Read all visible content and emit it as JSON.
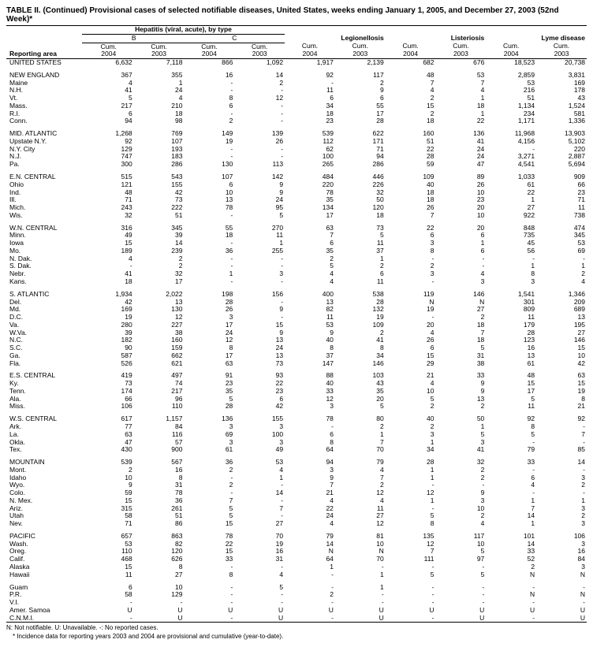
{
  "title": "TABLE II. (Continued) Provisional cases of selected notifiable diseases, United States, weeks ending January 1, 2005, and December 27, 2003 (52nd Week)*",
  "header": {
    "super": "Hepatitis (viral, acute), by type",
    "diseases": [
      "B",
      "C",
      "Legionellosis",
      "Listeriosis",
      "Lyme disease"
    ],
    "sub": [
      "Cum. 2004",
      "Cum. 2003"
    ],
    "area": "Reporting area"
  },
  "footnotes": [
    "N: Not notifiable.        U: Unavailable.        -: No reported cases.",
    "* Incidence data for reporting years 2003 and 2004 are provisional and cumulative (year-to-date)."
  ],
  "groups": [
    {
      "rows": [
        [
          "UNITED STATES",
          "6,632",
          "7,118",
          "866",
          "1,092",
          "1,917",
          "2,139",
          "682",
          "676",
          "18,523",
          "20,738"
        ]
      ]
    },
    {
      "rows": [
        [
          "NEW ENGLAND",
          "367",
          "355",
          "16",
          "14",
          "92",
          "117",
          "48",
          "53",
          "2,859",
          "3,831"
        ],
        [
          "Maine",
          "4",
          "1",
          "-",
          "2",
          "-",
          "2",
          "7",
          "7",
          "53",
          "169"
        ],
        [
          "N.H.",
          "41",
          "24",
          "-",
          "-",
          "11",
          "9",
          "4",
          "4",
          "216",
          "178"
        ],
        [
          "Vt.",
          "5",
          "4",
          "8",
          "12",
          "6",
          "6",
          "2",
          "1",
          "51",
          "43"
        ],
        [
          "Mass.",
          "217",
          "210",
          "6",
          "-",
          "34",
          "55",
          "15",
          "18",
          "1,134",
          "1,524"
        ],
        [
          "R.I.",
          "6",
          "18",
          "-",
          "-",
          "18",
          "17",
          "2",
          "1",
          "234",
          "581"
        ],
        [
          "Conn.",
          "94",
          "98",
          "2",
          "-",
          "23",
          "28",
          "18",
          "22",
          "1,171",
          "1,336"
        ]
      ]
    },
    {
      "rows": [
        [
          "MID. ATLANTIC",
          "1,268",
          "769",
          "149",
          "139",
          "539",
          "622",
          "160",
          "136",
          "11,968",
          "13,903"
        ],
        [
          "Upstate N.Y.",
          "92",
          "107",
          "19",
          "26",
          "112",
          "171",
          "51",
          "41",
          "4,156",
          "5,102"
        ],
        [
          "N.Y. City",
          "129",
          "193",
          "-",
          "-",
          "62",
          "71",
          "22",
          "24",
          "-",
          "220"
        ],
        [
          "N.J.",
          "747",
          "183",
          "-",
          "-",
          "100",
          "94",
          "28",
          "24",
          "3,271",
          "2,887"
        ],
        [
          "Pa.",
          "300",
          "286",
          "130",
          "113",
          "265",
          "286",
          "59",
          "47",
          "4,541",
          "5,694"
        ]
      ]
    },
    {
      "rows": [
        [
          "E.N. CENTRAL",
          "515",
          "543",
          "107",
          "142",
          "484",
          "446",
          "109",
          "89",
          "1,033",
          "909"
        ],
        [
          "Ohio",
          "121",
          "155",
          "6",
          "9",
          "220",
          "226",
          "40",
          "26",
          "61",
          "66"
        ],
        [
          "Ind.",
          "48",
          "42",
          "10",
          "9",
          "78",
          "32",
          "18",
          "10",
          "22",
          "23"
        ],
        [
          "Ill.",
          "71",
          "73",
          "13",
          "24",
          "35",
          "50",
          "18",
          "23",
          "1",
          "71"
        ],
        [
          "Mich.",
          "243",
          "222",
          "78",
          "95",
          "134",
          "120",
          "26",
          "20",
          "27",
          "11"
        ],
        [
          "Wis.",
          "32",
          "51",
          "-",
          "5",
          "17",
          "18",
          "7",
          "10",
          "922",
          "738"
        ]
      ]
    },
    {
      "rows": [
        [
          "W.N. CENTRAL",
          "316",
          "345",
          "55",
          "270",
          "63",
          "73",
          "22",
          "20",
          "848",
          "474"
        ],
        [
          "Minn.",
          "49",
          "39",
          "18",
          "11",
          "7",
          "5",
          "6",
          "6",
          "735",
          "345"
        ],
        [
          "Iowa",
          "15",
          "14",
          "-",
          "1",
          "6",
          "11",
          "3",
          "1",
          "45",
          "53"
        ],
        [
          "Mo.",
          "189",
          "239",
          "36",
          "255",
          "35",
          "37",
          "8",
          "6",
          "56",
          "69"
        ],
        [
          "N. Dak.",
          "4",
          "2",
          "-",
          "-",
          "2",
          "1",
          "-",
          "-",
          "-",
          "-"
        ],
        [
          "S. Dak.",
          "-",
          "2",
          "-",
          "-",
          "5",
          "2",
          "2",
          "-",
          "1",
          "1"
        ],
        [
          "Nebr.",
          "41",
          "32",
          "1",
          "3",
          "4",
          "6",
          "3",
          "4",
          "8",
          "2"
        ],
        [
          "Kans.",
          "18",
          "17",
          "-",
          "-",
          "4",
          "11",
          "-",
          "3",
          "3",
          "4"
        ]
      ]
    },
    {
      "rows": [
        [
          "S. ATLANTIC",
          "1,934",
          "2,022",
          "198",
          "156",
          "400",
          "538",
          "119",
          "146",
          "1,541",
          "1,346"
        ],
        [
          "Del.",
          "42",
          "13",
          "28",
          "-",
          "13",
          "28",
          "N",
          "N",
          "301",
          "209"
        ],
        [
          "Md.",
          "169",
          "130",
          "26",
          "9",
          "82",
          "132",
          "19",
          "27",
          "809",
          "689"
        ],
        [
          "D.C.",
          "19",
          "12",
          "3",
          "-",
          "11",
          "19",
          "-",
          "2",
          "11",
          "13"
        ],
        [
          "Va.",
          "280",
          "227",
          "17",
          "15",
          "53",
          "109",
          "20",
          "18",
          "179",
          "195"
        ],
        [
          "W.Va.",
          "39",
          "38",
          "24",
          "9",
          "9",
          "2",
          "4",
          "7",
          "28",
          "27"
        ],
        [
          "N.C.",
          "182",
          "160",
          "12",
          "13",
          "40",
          "41",
          "26",
          "18",
          "123",
          "146"
        ],
        [
          "S.C.",
          "90",
          "159",
          "8",
          "24",
          "8",
          "8",
          "6",
          "5",
          "16",
          "15"
        ],
        [
          "Ga.",
          "587",
          "662",
          "17",
          "13",
          "37",
          "34",
          "15",
          "31",
          "13",
          "10"
        ],
        [
          "Fla.",
          "526",
          "621",
          "63",
          "73",
          "147",
          "146",
          "29",
          "38",
          "61",
          "42"
        ]
      ]
    },
    {
      "rows": [
        [
          "E.S. CENTRAL",
          "419",
          "497",
          "91",
          "93",
          "88",
          "103",
          "21",
          "33",
          "48",
          "63"
        ],
        [
          "Ky.",
          "73",
          "74",
          "23",
          "22",
          "40",
          "43",
          "4",
          "9",
          "15",
          "15"
        ],
        [
          "Tenn.",
          "174",
          "217",
          "35",
          "23",
          "33",
          "35",
          "10",
          "9",
          "17",
          "19"
        ],
        [
          "Ala.",
          "66",
          "96",
          "5",
          "6",
          "12",
          "20",
          "5",
          "13",
          "5",
          "8"
        ],
        [
          "Miss.",
          "106",
          "110",
          "28",
          "42",
          "3",
          "5",
          "2",
          "2",
          "11",
          "21"
        ]
      ]
    },
    {
      "rows": [
        [
          "W.S. CENTRAL",
          "617",
          "1,157",
          "136",
          "155",
          "78",
          "80",
          "40",
          "50",
          "92",
          "92"
        ],
        [
          "Ark.",
          "77",
          "84",
          "3",
          "3",
          "-",
          "2",
          "2",
          "1",
          "8",
          "-"
        ],
        [
          "La.",
          "63",
          "116",
          "69",
          "100",
          "6",
          "1",
          "3",
          "5",
          "5",
          "7"
        ],
        [
          "Okla.",
          "47",
          "57",
          "3",
          "3",
          "8",
          "7",
          "1",
          "3",
          "-",
          "-"
        ],
        [
          "Tex.",
          "430",
          "900",
          "61",
          "49",
          "64",
          "70",
          "34",
          "41",
          "79",
          "85"
        ]
      ]
    },
    {
      "rows": [
        [
          "MOUNTAIN",
          "539",
          "567",
          "36",
          "53",
          "94",
          "79",
          "28",
          "32",
          "33",
          "14"
        ],
        [
          "Mont.",
          "2",
          "16",
          "2",
          "4",
          "3",
          "4",
          "1",
          "2",
          "-",
          "-"
        ],
        [
          "Idaho",
          "10",
          "8",
          "-",
          "1",
          "9",
          "7",
          "1",
          "2",
          "6",
          "3"
        ],
        [
          "Wyo.",
          "9",
          "31",
          "2",
          "-",
          "7",
          "2",
          "-",
          "-",
          "4",
          "2"
        ],
        [
          "Colo.",
          "59",
          "78",
          "-",
          "14",
          "21",
          "12",
          "12",
          "9",
          "-",
          "-"
        ],
        [
          "N. Mex.",
          "15",
          "36",
          "7",
          "-",
          "4",
          "4",
          "1",
          "3",
          "1",
          "1"
        ],
        [
          "Ariz.",
          "315",
          "261",
          "5",
          "7",
          "22",
          "11",
          "-",
          "10",
          "7",
          "3"
        ],
        [
          "Utah",
          "58",
          "51",
          "5",
          "-",
          "24",
          "27",
          "5",
          "2",
          "14",
          "2"
        ],
        [
          "Nev.",
          "71",
          "86",
          "15",
          "27",
          "4",
          "12",
          "8",
          "4",
          "1",
          "3"
        ]
      ]
    },
    {
      "rows": [
        [
          "PACIFIC",
          "657",
          "863",
          "78",
          "70",
          "79",
          "81",
          "135",
          "117",
          "101",
          "106"
        ],
        [
          "Wash.",
          "53",
          "82",
          "22",
          "19",
          "14",
          "10",
          "12",
          "10",
          "14",
          "3"
        ],
        [
          "Oreg.",
          "110",
          "120",
          "15",
          "16",
          "N",
          "N",
          "7",
          "5",
          "33",
          "16"
        ],
        [
          "Calif.",
          "468",
          "626",
          "33",
          "31",
          "64",
          "70",
          "111",
          "97",
          "52",
          "84"
        ],
        [
          "Alaska",
          "15",
          "8",
          "-",
          "-",
          "1",
          "-",
          "-",
          "-",
          "2",
          "3"
        ],
        [
          "Hawaii",
          "11",
          "27",
          "8",
          "4",
          "-",
          "1",
          "5",
          "5",
          "N",
          "N"
        ]
      ]
    },
    {
      "rows": [
        [
          "Guam",
          "6",
          "10",
          "-",
          "5",
          "-",
          "1",
          "-",
          "-",
          "-",
          "-"
        ],
        [
          "P.R.",
          "58",
          "129",
          "-",
          "-",
          "2",
          "-",
          "-",
          "-",
          "N",
          "N"
        ],
        [
          "V.I.",
          "-",
          "-",
          "-",
          "-",
          "-",
          "-",
          "-",
          "-",
          "-",
          "-"
        ],
        [
          "Amer. Samoa",
          "U",
          "U",
          "U",
          "U",
          "U",
          "U",
          "U",
          "U",
          "U",
          "U"
        ],
        [
          "C.N.M.I.",
          "-",
          "U",
          "-",
          "U",
          "-",
          "U",
          "-",
          "U",
          "-",
          "U"
        ]
      ]
    }
  ]
}
